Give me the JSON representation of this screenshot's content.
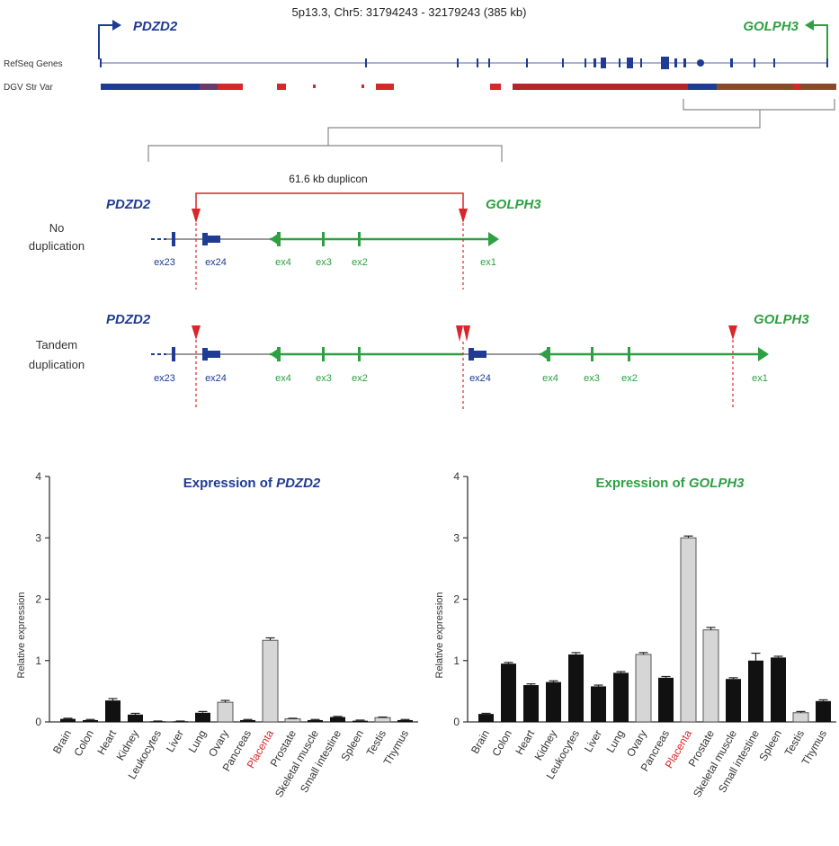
{
  "header": {
    "locus": "5p13.3, Chr5: 31794243 - 32179243 (385 kb)",
    "gene_left": "PDZD2",
    "gene_right": "GOLPH3",
    "track_refseq": "RefSeq Genes",
    "track_dgv": "DGV Str Var"
  },
  "duplicon": {
    "label": "61.6 kb duplicon"
  },
  "no_dup": {
    "label_line1": "No",
    "label_line2": "duplication",
    "gene_left": "PDZD2",
    "gene_right": "GOLPH3",
    "exons": [
      "ex23",
      "ex24",
      "ex4",
      "ex3",
      "ex2",
      "ex1"
    ]
  },
  "tandem": {
    "label_line1": "Tandem",
    "label_line2": "duplication",
    "gene_left": "PDZD2",
    "gene_right": "GOLPH3",
    "exons": [
      "ex23",
      "ex24",
      "ex4",
      "ex3",
      "ex2",
      "ex24",
      "ex4",
      "ex3",
      "ex2",
      "ex1"
    ]
  },
  "colors": {
    "pdzd2": "#1f3b93",
    "golph3": "#2ea043",
    "red": "#d8262b",
    "brown": "#8a4a2a",
    "bar_black": "#111111",
    "bar_gray": "#d6d6d6"
  },
  "chart_data": [
    {
      "type": "bar",
      "title_prefix": "Expression of ",
      "title_gene": "PDZD2",
      "ylabel": "Relative expression",
      "ylim": [
        0,
        4
      ],
      "yticks": [
        "0",
        "1",
        "2",
        "3",
        "4"
      ],
      "categories": [
        "Brain",
        "Colon",
        "Heart",
        "Kidney",
        "Leukocytes",
        "Liver",
        "Lung",
        "Ovary",
        "Pancreas",
        "Placenta",
        "Prostate",
        "Skeletal muscle",
        "Small intestine",
        "Spleen",
        "Testis",
        "Thymus"
      ],
      "values": [
        0.05,
        0.03,
        0.35,
        0.12,
        0.01,
        0.01,
        0.15,
        0.32,
        0.03,
        1.33,
        0.05,
        0.03,
        0.08,
        0.02,
        0.07,
        0.03
      ],
      "errors": [
        0.01,
        0.01,
        0.03,
        0.02,
        0.005,
        0.005,
        0.02,
        0.03,
        0.01,
        0.04,
        0.01,
        0.01,
        0.01,
        0.01,
        0.01,
        0.01
      ],
      "gray": [
        "Ovary",
        "Placenta",
        "Prostate",
        "Testis"
      ],
      "highlight": "Placenta"
    },
    {
      "type": "bar",
      "title_prefix": "Expression of ",
      "title_gene": "GOLPH3",
      "ylabel": "Relative expression",
      "ylim": [
        0,
        4
      ],
      "yticks": [
        "0",
        "1",
        "2",
        "3",
        "4"
      ],
      "categories": [
        "Brain",
        "Colon",
        "Heart",
        "Kidney",
        "Leukocytes",
        "Liver",
        "Lung",
        "Ovary",
        "Pancreas",
        "Placenta",
        "Prostate",
        "Skeletal muscle",
        "Small intestine",
        "Spleen",
        "Testis",
        "Thymus"
      ],
      "values": [
        0.13,
        0.95,
        0.6,
        0.65,
        1.1,
        0.58,
        0.8,
        1.1,
        0.72,
        3.0,
        1.5,
        0.7,
        1.0,
        1.05,
        0.15,
        0.34
      ],
      "errors": [
        0.01,
        0.02,
        0.02,
        0.02,
        0.03,
        0.02,
        0.02,
        0.03,
        0.02,
        0.03,
        0.04,
        0.02,
        0.12,
        0.02,
        0.02,
        0.02
      ],
      "gray": [
        "Ovary",
        "Placenta",
        "Prostate",
        "Testis"
      ],
      "highlight": "Placenta"
    }
  ]
}
